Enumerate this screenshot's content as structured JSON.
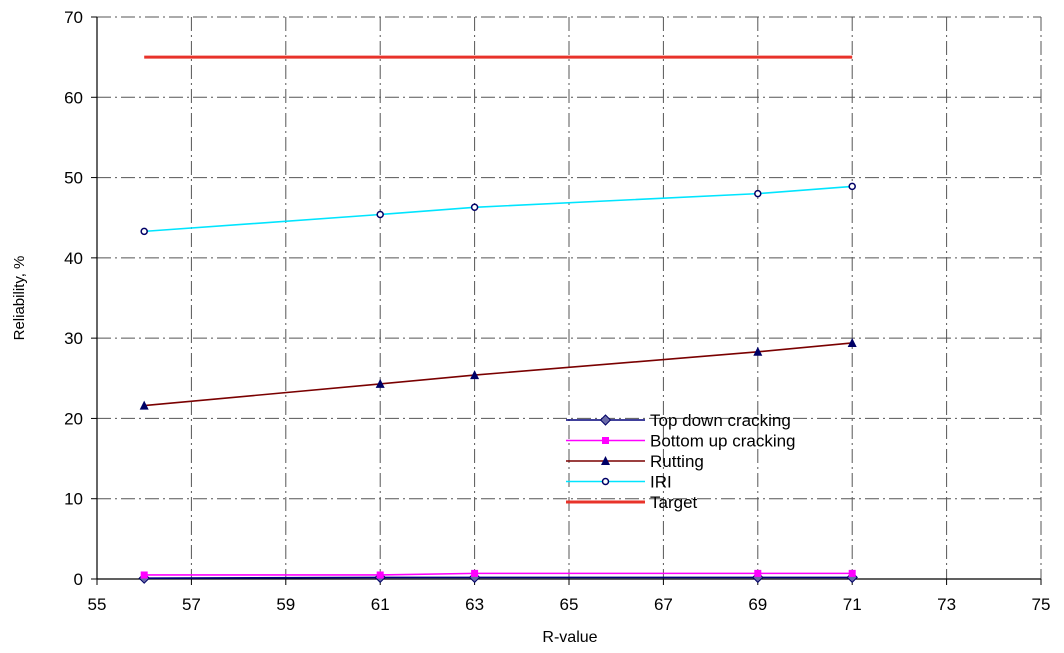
{
  "chart_data": {
    "type": "line",
    "title": "",
    "xlabel": "R-value",
    "ylabel": "Reliability, %",
    "xlim": [
      55,
      75
    ],
    "ylim": [
      0,
      70
    ],
    "xticks": [
      55,
      57,
      59,
      61,
      63,
      65,
      67,
      69,
      71,
      73,
      75
    ],
    "yticks": [
      0,
      10,
      20,
      30,
      40,
      50,
      60,
      70
    ],
    "grid": true,
    "legend_position": "center-bottom",
    "series": [
      {
        "name": "Top down cracking",
        "color": "#00007a",
        "marker": "diamond",
        "markerColor": "#6a6aa8",
        "x": [
          56,
          61,
          63,
          69,
          71
        ],
        "y": [
          0.1,
          0.2,
          0.2,
          0.2,
          0.2
        ]
      },
      {
        "name": "Bottom up cracking",
        "color": "#ff00ff",
        "marker": "square",
        "markerColor": "#ff00ff",
        "x": [
          56,
          61,
          63,
          69,
          71
        ],
        "y": [
          0.5,
          0.5,
          0.7,
          0.7,
          0.7
        ]
      },
      {
        "name": "Rutting",
        "color": "#7a0000",
        "marker": "triangle",
        "markerColor": "#000066",
        "x": [
          56,
          61,
          63,
          69,
          71
        ],
        "y": [
          21.6,
          24.3,
          25.4,
          28.3,
          29.4
        ]
      },
      {
        "name": "IRI",
        "color": "#00e5ff",
        "marker": "circle",
        "markerColor": "#000066",
        "x": [
          56,
          61,
          63,
          69,
          71
        ],
        "y": [
          43.3,
          45.4,
          46.3,
          48.0,
          48.9
        ]
      },
      {
        "name": "Target",
        "color": "#e8332a",
        "marker": "none",
        "markerColor": "#e8332a",
        "x": [
          56,
          71
        ],
        "y": [
          65,
          65
        ]
      }
    ]
  }
}
